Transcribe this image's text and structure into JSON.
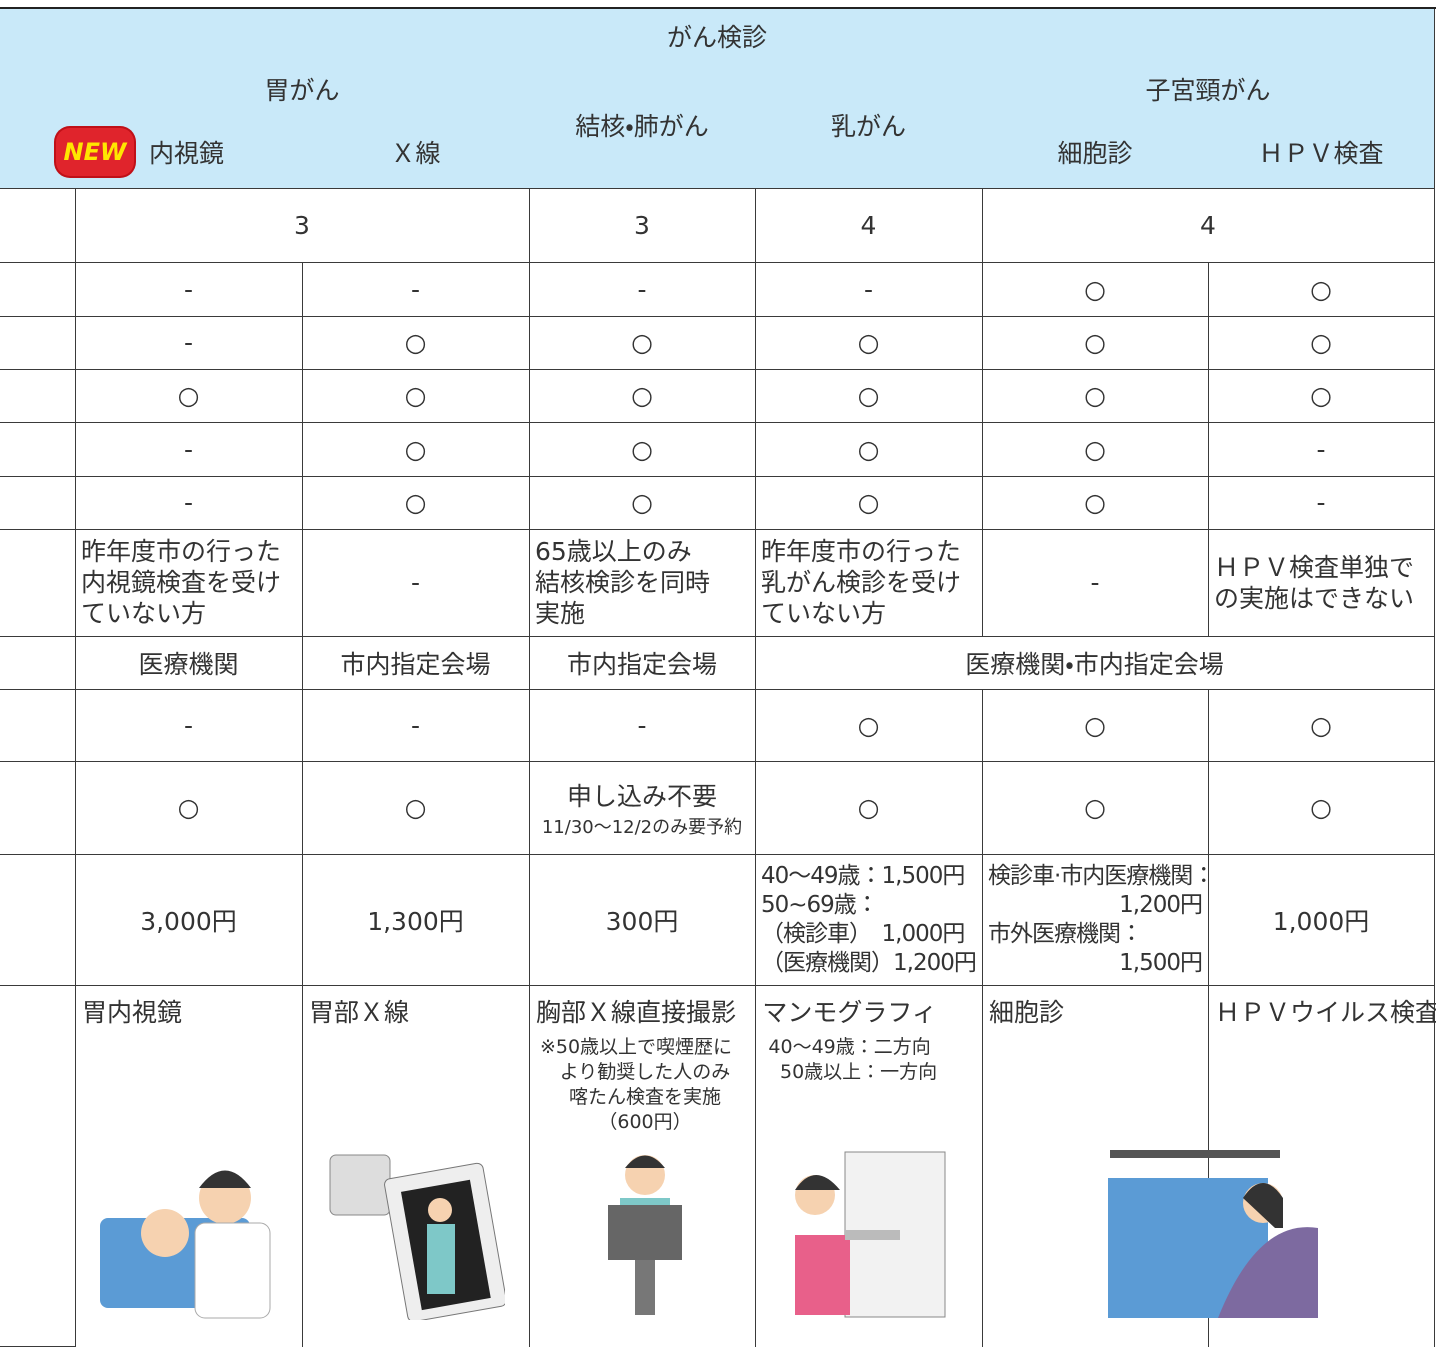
{
  "table": {
    "title": "がん検診",
    "header": {
      "groups": [
        {
          "label": "胃がん",
          "sub": [
            {
              "label": "内視鏡",
              "badge": "NEW"
            },
            {
              "label": "Ｘ線"
            }
          ]
        },
        {
          "label": "結核・肺がん"
        },
        {
          "label": "乳がん"
        },
        {
          "label": "子宮頸がん",
          "sub": [
            {
              "label": "細胞診"
            },
            {
              "label": "ＨＰＶ検査"
            }
          ]
        }
      ]
    },
    "rows": [
      [
        "3",
        "3",
        "4",
        "4"
      ],
      [
        "-",
        "-",
        "-",
        "-",
        "○",
        "○"
      ],
      [
        "-",
        "○",
        "○",
        "○",
        "○",
        "○"
      ],
      [
        "○",
        "○",
        "○",
        "○",
        "○",
        "○"
      ],
      [
        "-",
        "○",
        "○",
        "○",
        "○",
        "-"
      ],
      [
        "-",
        "○",
        "○",
        "○",
        "○",
        "-"
      ],
      [
        [
          "昨年度市の行った",
          "内視鏡検査を受け",
          "ていない方"
        ],
        "-",
        [
          "65歳以上のみ",
          "結核検診を同時",
          "実施"
        ],
        [
          "昨年度市の行った",
          "乳がん検診を受け",
          "ていない方"
        ],
        "-",
        [
          "ＨＰＶ検査単独で",
          "の実施はできない"
        ]
      ],
      [
        "医療機関",
        "市内指定会場",
        "市内指定会場",
        "医療機関・市内指定会場"
      ],
      [
        "-",
        "-",
        "-",
        "○",
        "○",
        "○"
      ],
      [
        "○",
        "○",
        {
          "main": "申し込み不要",
          "note": "11/30～12/2のみ要予約"
        },
        "○",
        "○",
        "○"
      ],
      [
        "3,000円",
        "1,300円",
        "300円",
        [
          "40～49歳：1,500円",
          "50~69歳：",
          "（検診車）　1,000円",
          "（医療機関）1,200円"
        ],
        [
          "検診車·市内医療機関：",
          "1,200円",
          "市外医療機関：",
          "1,500円"
        ],
        "1,000円"
      ],
      [
        {
          "title": "胃内視鏡"
        },
        {
          "title": "胃部Ｘ線"
        },
        {
          "title": "胸部Ｘ線直接撮影",
          "note": [
            "※50歳以上で喫煙歴に",
            "より勧奨した人のみ",
            "喀たん検査を実施",
            "（600円）"
          ]
        },
        {
          "title": "マンモグラフィ",
          "note": [
            "40～49歳：二方向",
            "50歳以上：一方向"
          ]
        },
        {
          "title": "細胞診"
        },
        {
          "title": "ＨＰＶウイルス検査"
        }
      ]
    ]
  }
}
